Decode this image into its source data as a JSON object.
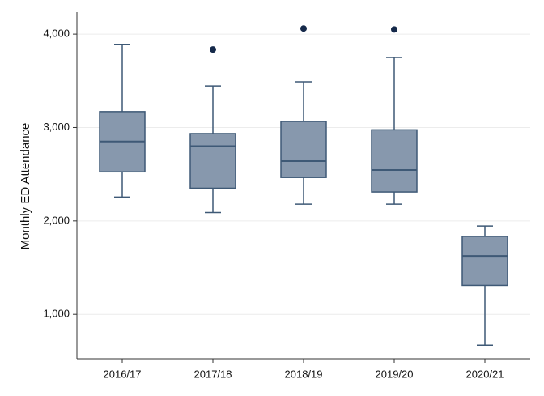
{
  "chart_data": {
    "type": "box",
    "y_label": "Monthly ED Attendance",
    "categories": [
      "2016/17",
      "2017/18",
      "2018/19",
      "2019/20",
      "2020/21"
    ],
    "boxes": [
      {
        "whislo": 2255,
        "q1": 2525,
        "med": 2850,
        "q3": 3170,
        "whishi": 3890,
        "fliers": []
      },
      {
        "whislo": 2090,
        "q1": 2350,
        "med": 2800,
        "q3": 2935,
        "whishi": 3445,
        "fliers": [
          3835
        ]
      },
      {
        "whislo": 2180,
        "q1": 2465,
        "med": 2640,
        "q3": 3065,
        "whishi": 3490,
        "fliers": [
          4060
        ]
      },
      {
        "whislo": 2180,
        "q1": 2310,
        "med": 2545,
        "q3": 2975,
        "whishi": 3750,
        "fliers": [
          4050
        ]
      },
      {
        "whislo": 670,
        "q1": 1310,
        "med": 1625,
        "q3": 1835,
        "whishi": 1945,
        "fliers": []
      }
    ],
    "color": "#8798ad",
    "edge_color": "#3e5976",
    "flier_color": "#15294a",
    "ylim": [
      525,
      4235
    ],
    "yticks": [
      {
        "value": 1000,
        "label": "1,000"
      },
      {
        "value": 2000,
        "label": "2,000"
      },
      {
        "value": 3000,
        "label": "3,000"
      },
      {
        "value": 4000,
        "label": "4,000"
      }
    ],
    "grid": true
  }
}
